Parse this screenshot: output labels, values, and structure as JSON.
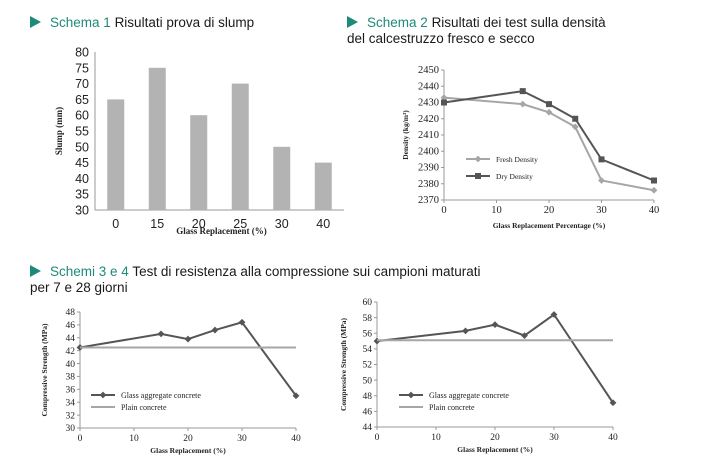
{
  "headings": {
    "h1": {
      "lead": "Schema 1",
      "text": "Risultati prova di slump"
    },
    "h2": {
      "lead": "Schema 2",
      "text_line1": "Risultati dei test sulla densità",
      "text_line2": "del calcestruzzo fresco e secco"
    },
    "h3": {
      "lead": "Schemi 3 e 4",
      "text_line1": "Test di resistenza alla compressione sui campioni maturati",
      "text_line2": "per 7 e 28 giorni"
    }
  },
  "colors": {
    "accent": "#1e8a7a",
    "bar": "#b3b3b3",
    "series_dark": "#555555",
    "series_light": "#a6a6a6"
  },
  "chart_data": [
    {
      "type": "bar",
      "title": "",
      "xlabel": "Glass Replacement (%)",
      "ylabel": "Slump (mm)",
      "categories": [
        "0",
        "15",
        "20",
        "25",
        "30",
        "40"
      ],
      "values": [
        65,
        75,
        60,
        70,
        50,
        45
      ],
      "ylim": [
        30,
        80
      ],
      "yticks": [
        "30",
        "35",
        "40",
        "45",
        "50",
        "55",
        "60",
        "65",
        "70",
        "75",
        "80"
      ],
      "grid": false
    },
    {
      "type": "line",
      "title": "",
      "xlabel": "Glass Replacement Percentage (%)",
      "ylabel": "Density (kg/m³)",
      "x": [
        0,
        15,
        20,
        25,
        30,
        40
      ],
      "xticks": [
        "0",
        "10",
        "20",
        "30",
        "40"
      ],
      "yticks": [
        "2370",
        "2380",
        "2390",
        "2400",
        "2410",
        "2420",
        "2430",
        "2440",
        "2450"
      ],
      "xlim": [
        0,
        40
      ],
      "ylim": [
        2370,
        2450
      ],
      "series": [
        {
          "name": "Fresh Density",
          "values": [
            2433,
            2429,
            2424,
            2415,
            2382,
            2376
          ],
          "marker": "diamond"
        },
        {
          "name": "Dry Density",
          "values": [
            2430,
            2437,
            2429,
            2420,
            2395,
            2382
          ],
          "marker": "square"
        }
      ],
      "legend": "left-middle",
      "grid": false
    },
    {
      "type": "line",
      "title": "",
      "xlabel": "Glass Replacement (%)",
      "ylabel": "Compressive Strength (MPa)",
      "x": [
        0,
        15,
        20,
        25,
        30,
        40
      ],
      "xticks": [
        "0",
        "10",
        "20",
        "30",
        "40"
      ],
      "yticks": [
        "30",
        "32",
        "34",
        "36",
        "38",
        "40",
        "42",
        "44",
        "46",
        "48"
      ],
      "xlim": [
        0,
        40
      ],
      "ylim": [
        30,
        48
      ],
      "series": [
        {
          "name": "Glass aggregate concrete",
          "values": [
            42.5,
            44.6,
            43.8,
            45.2,
            46.4,
            35.0
          ],
          "marker": "diamond"
        },
        {
          "name": "Plain concrete",
          "values": [
            42.5,
            42.5,
            42.5,
            42.5,
            42.5,
            42.5
          ],
          "marker": "none"
        }
      ],
      "legend": "bottom-left",
      "grid": false
    },
    {
      "type": "line",
      "title": "",
      "xlabel": "Glass Replacement (%)",
      "ylabel": "Compressive Strength (MPa)",
      "x": [
        0,
        15,
        20,
        25,
        30,
        40
      ],
      "xticks": [
        "0",
        "10",
        "20",
        "30",
        "40"
      ],
      "yticks": [
        "44",
        "46",
        "48",
        "50",
        "52",
        "54",
        "56",
        "58",
        "60"
      ],
      "xlim": [
        0,
        40
      ],
      "ylim": [
        44,
        60
      ],
      "series": [
        {
          "name": "Glass aggregate concrete",
          "values": [
            55.0,
            56.3,
            57.1,
            55.7,
            58.4,
            47.1
          ],
          "marker": "diamond"
        },
        {
          "name": "Plain concrete",
          "values": [
            55.1,
            55.1,
            55.1,
            55.1,
            55.1,
            55.1
          ],
          "marker": "none"
        }
      ],
      "legend": "bottom-left",
      "grid": false
    }
  ]
}
